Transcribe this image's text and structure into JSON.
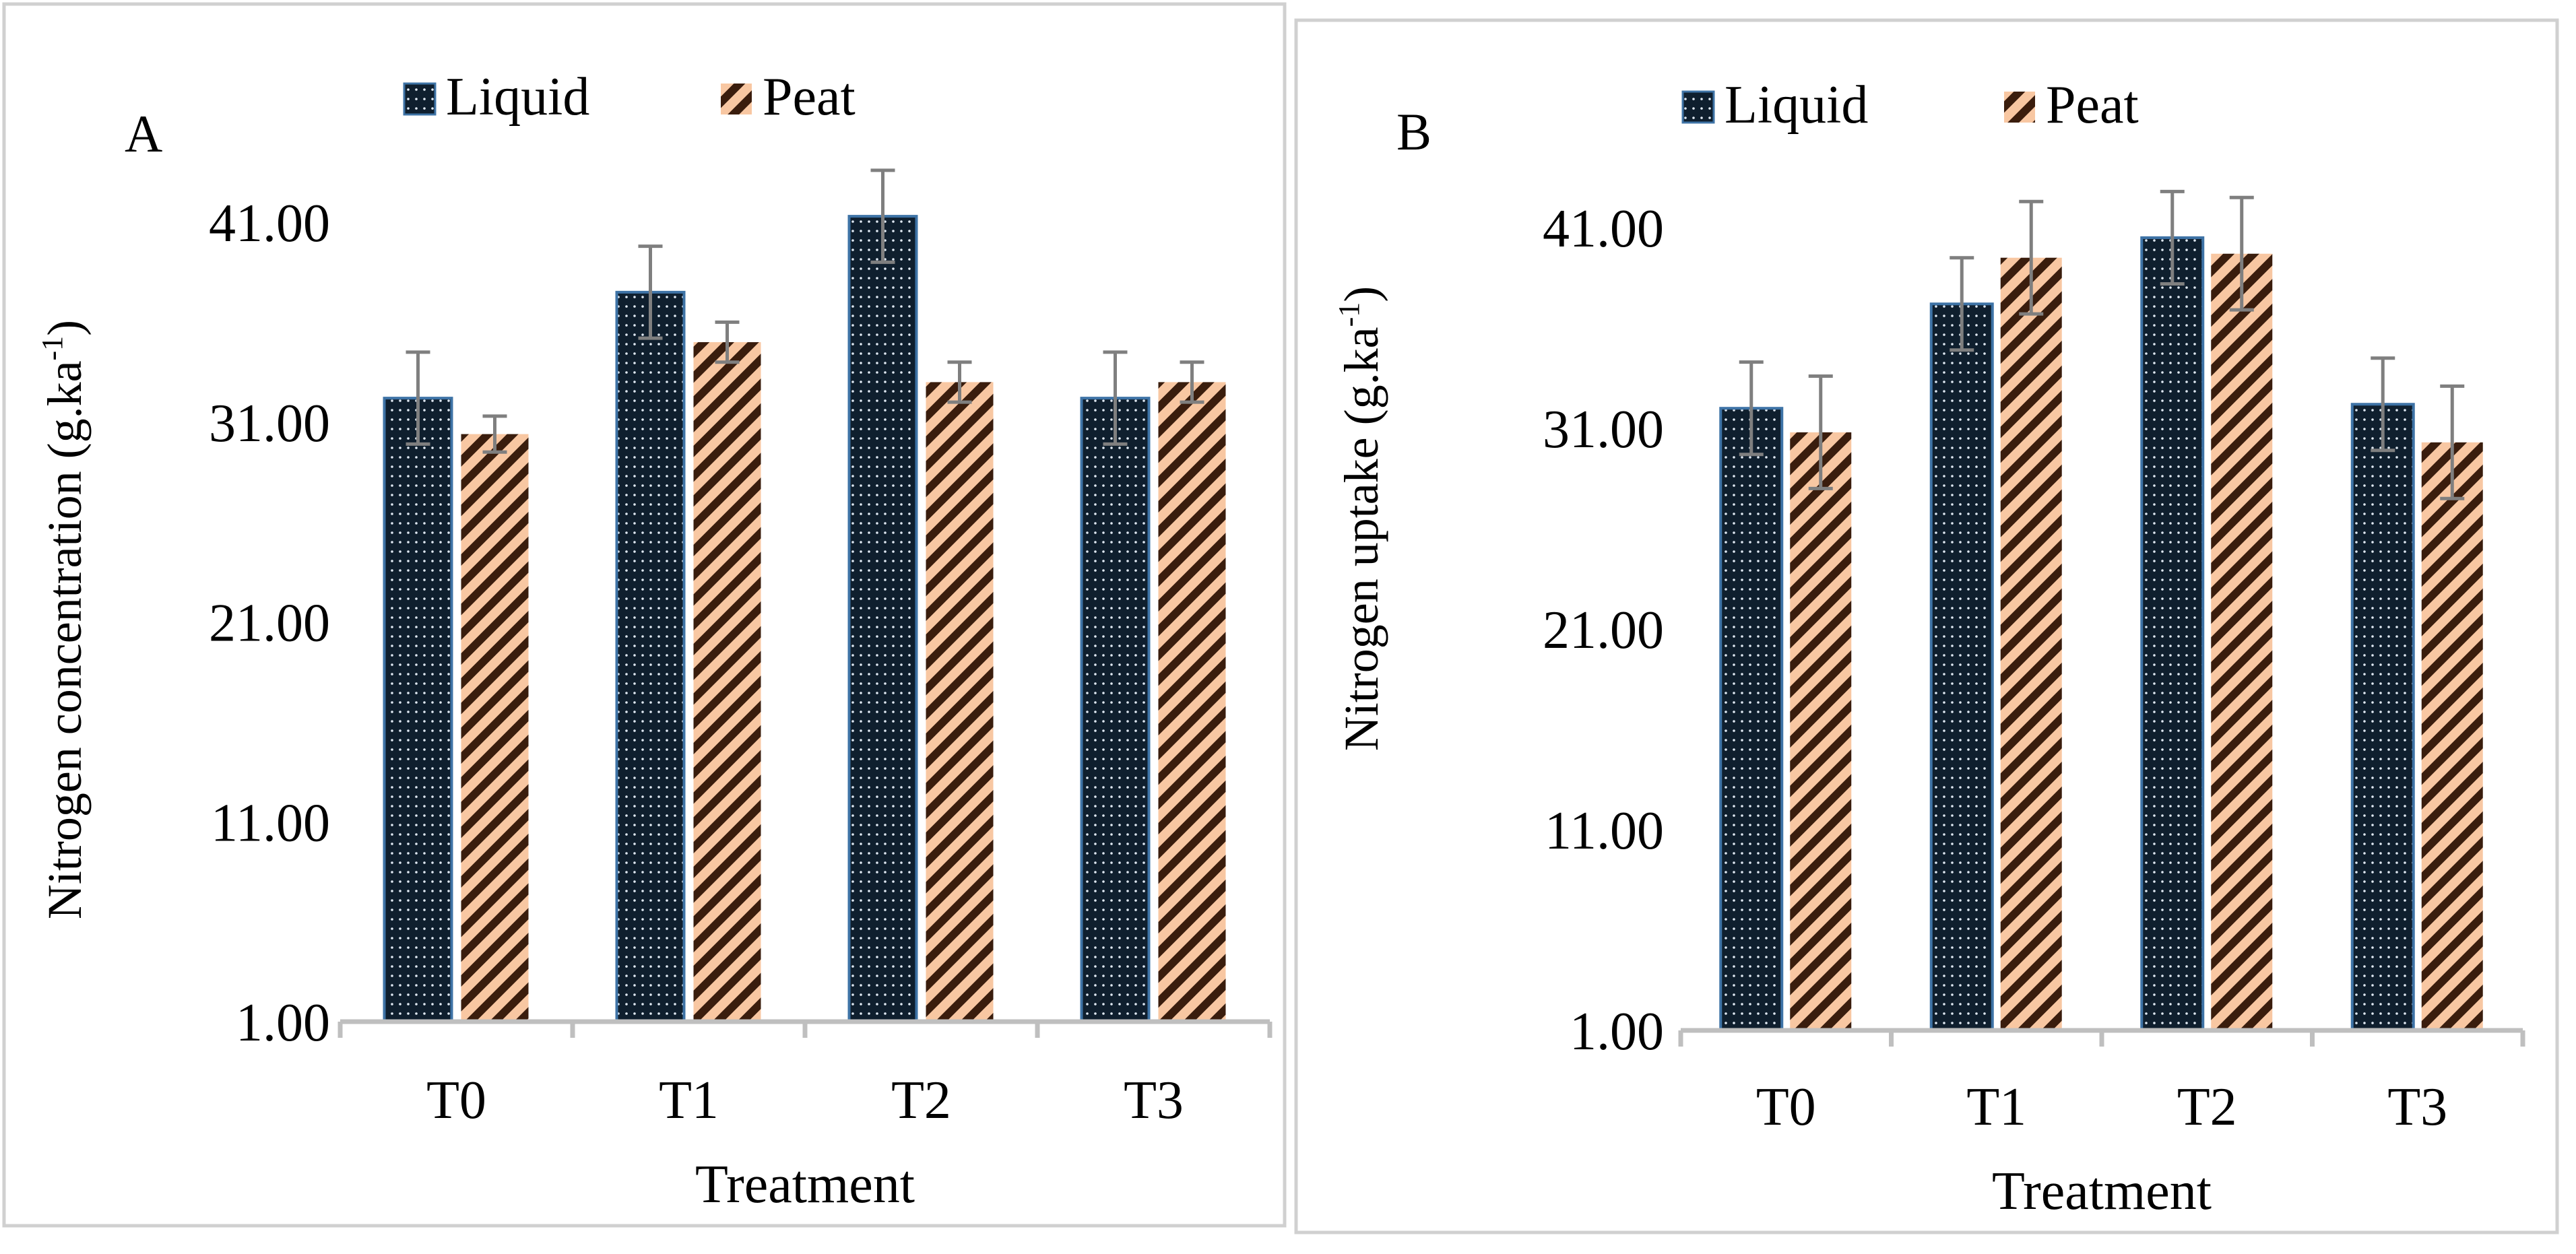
{
  "figure": {
    "panel_labels": [
      "A",
      "B"
    ]
  },
  "colors": {
    "liquid": "#0f1f2e",
    "liquid_border": "#3e73a6",
    "liquid_dots": "#dfe8f2",
    "peat_stripe": "#3a1d0d",
    "peat_light": "#f8c7a2",
    "error": "#7f7f7f",
    "axis": "#bfbfbf",
    "frame": "#d0d0d0"
  },
  "chart_data": [
    {
      "type": "bar",
      "panel": "A",
      "title": "",
      "xlabel": "Treatment",
      "ylabel": "Nitrogen concentration (g.ka",
      "ylabel_sup": "-1",
      "ylabel_close": ")",
      "categories": [
        "T0",
        "T1",
        "T2",
        "T3"
      ],
      "ylim": [
        1,
        41
      ],
      "yticks": [
        1,
        11,
        21,
        31,
        41
      ],
      "ytick_labels": [
        "1.00",
        "11.00",
        "21.00",
        "31.00",
        "41.00"
      ],
      "legend": [
        "Liquid",
        "Peat"
      ],
      "series": [
        {
          "name": "Liquid",
          "values": [
            32.2,
            37.5,
            41.3,
            32.2
          ],
          "errors": [
            2.3,
            2.3,
            2.3,
            2.3
          ]
        },
        {
          "name": "Peat",
          "values": [
            30.4,
            35.0,
            33.0,
            33.0
          ],
          "errors": [
            0.9,
            1.0,
            1.0,
            1.0
          ]
        }
      ]
    },
    {
      "type": "bar",
      "panel": "B",
      "title": "",
      "xlabel": "Treatment",
      "ylabel": "Nitrogen uptake (g.ka",
      "ylabel_sup": "-1",
      "ylabel_close": ")",
      "categories": [
        "T0",
        "T1",
        "T2",
        "T3"
      ],
      "ylim": [
        1,
        41
      ],
      "yticks": [
        1,
        11,
        21,
        31,
        41
      ],
      "ytick_labels": [
        "1.00",
        "11.00",
        "21.00",
        "31.00",
        "41.00"
      ],
      "legend": [
        "Liquid",
        "Peat"
      ],
      "series": [
        {
          "name": "Liquid",
          "values": [
            32.0,
            37.2,
            40.5,
            32.2
          ],
          "errors": [
            2.3,
            2.3,
            2.3,
            2.3
          ]
        },
        {
          "name": "Peat",
          "values": [
            30.8,
            39.5,
            39.7,
            30.3
          ],
          "errors": [
            2.8,
            2.8,
            2.8,
            2.8
          ]
        }
      ]
    }
  ]
}
